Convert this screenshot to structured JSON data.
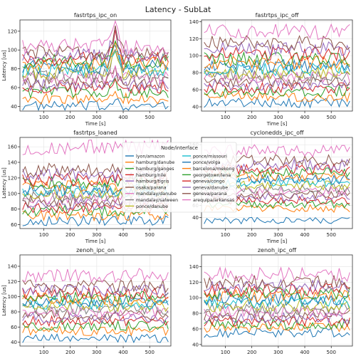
{
  "figure": {
    "title": "Latency - SubLat"
  },
  "legend": {
    "title": "Node/interface",
    "entries": [
      {
        "label": "lyon/amazon",
        "color": "#1f77b4"
      },
      {
        "label": "hamburg/danube",
        "color": "#ff7f0e"
      },
      {
        "label": "hamburg/ganges",
        "color": "#2ca02c"
      },
      {
        "label": "hamburg/nile",
        "color": "#d62728"
      },
      {
        "label": "hamburg/tigris",
        "color": "#9467bd"
      },
      {
        "label": "osaka/parana",
        "color": "#8c564b"
      },
      {
        "label": "mandalay/danube",
        "color": "#e377c2"
      },
      {
        "label": "mandalay/salween",
        "color": "#7f7f7f"
      },
      {
        "label": "ponce/danube",
        "color": "#bcbd22"
      },
      {
        "label": "ponce/missouri",
        "color": "#17becf"
      },
      {
        "label": "ponce/volga",
        "color": "#1f77b4"
      },
      {
        "label": "barcelona/mekong",
        "color": "#ff7f0e"
      },
      {
        "label": "georgetown/lena",
        "color": "#2ca02c"
      },
      {
        "label": "geneva/congo",
        "color": "#d62728"
      },
      {
        "label": "geneva/danube",
        "color": "#9467bd"
      },
      {
        "label": "geneva/parana",
        "color": "#8c564b"
      },
      {
        "label": "arequipa/arkansas",
        "color": "#e377c2"
      }
    ]
  },
  "chart_data": [
    {
      "type": "line",
      "title": "fastrtps_ipc_on",
      "xlabel": "Time [s]",
      "ylabel": "Latency [us]",
      "xlim": [
        10,
        580
      ],
      "ylim": [
        35,
        132
      ],
      "xticks": [
        100,
        200,
        300,
        400,
        500
      ],
      "yticks": [
        40,
        60,
        80,
        100,
        120
      ],
      "series_levels": [
        40,
        48,
        55,
        60,
        63,
        66,
        70,
        73,
        76,
        79,
        82,
        85,
        88,
        91,
        95,
        98,
        104
      ],
      "spike": {
        "x_range": [
          340,
          400
        ],
        "delta": 25
      },
      "note_series": "17 noisy latency series sampled ~every 10 s from 20 to 570 s"
    },
    {
      "type": "line",
      "title": "fastrtps_ipc_off",
      "xlabel": "Time [s]",
      "ylabel": "",
      "xlim": [
        10,
        580
      ],
      "ylim": [
        35,
        142
      ],
      "xticks": [
        100,
        200,
        300,
        400,
        500
      ],
      "yticks": [
        40,
        60,
        80,
        100,
        120,
        140
      ],
      "series_levels": [
        45,
        52,
        58,
        62,
        66,
        70,
        74,
        77,
        80,
        84,
        88,
        92,
        96,
        102,
        108,
        115,
        128
      ]
    },
    {
      "type": "line",
      "title": "fastrtps_loaned",
      "xlabel": "Time [s]",
      "ylabel": "Latency [us]",
      "xlim": [
        10,
        580
      ],
      "ylim": [
        55,
        172
      ],
      "xticks": [
        100,
        200,
        300,
        400,
        500
      ],
      "yticks": [
        60,
        80,
        100,
        120,
        140,
        160
      ],
      "series_levels": [
        65,
        72,
        78,
        82,
        86,
        90,
        94,
        97,
        100,
        103,
        106,
        110,
        114,
        118,
        124,
        130,
        160
      ]
    },
    {
      "type": "line",
      "title": "cyclonedds_ipc_off",
      "xlabel": "Time [s]",
      "ylabel": "",
      "xlim": [
        10,
        580
      ],
      "ylim": [
        22,
        172
      ],
      "xticks": [
        100,
        200,
        300,
        400,
        500
      ],
      "yticks": [
        40,
        60,
        80,
        100,
        120,
        140,
        160
      ],
      "series_levels": [
        35,
        55,
        62,
        68,
        73,
        78,
        83,
        88,
        93,
        98,
        103,
        108,
        114,
        120,
        127,
        135,
        150
      ]
    },
    {
      "type": "line",
      "title": "zenoh_ipc_on",
      "xlabel": "Time [s]",
      "ylabel": "Latency [us]",
      "xlim": [
        10,
        580
      ],
      "ylim": [
        35,
        155
      ],
      "xticks": [
        100,
        200,
        300,
        400,
        500
      ],
      "yticks": [
        40,
        60,
        80,
        100,
        120,
        140
      ],
      "series_levels": [
        45,
        55,
        62,
        68,
        72,
        76,
        80,
        84,
        88,
        91,
        94,
        97,
        100,
        104,
        108,
        114,
        128
      ]
    },
    {
      "type": "line",
      "title": "zenoh_ipc_off",
      "xlabel": "Time [s]",
      "ylabel": "",
      "xlim": [
        10,
        580
      ],
      "ylim": [
        38,
        155
      ],
      "xticks": [
        100,
        200,
        300,
        400,
        500
      ],
      "yticks": [
        40,
        60,
        80,
        100,
        120,
        140
      ],
      "series_levels": [
        55,
        62,
        66,
        70,
        74,
        78,
        82,
        86,
        90,
        94,
        98,
        102,
        106,
        110,
        115,
        120,
        130
      ]
    }
  ]
}
